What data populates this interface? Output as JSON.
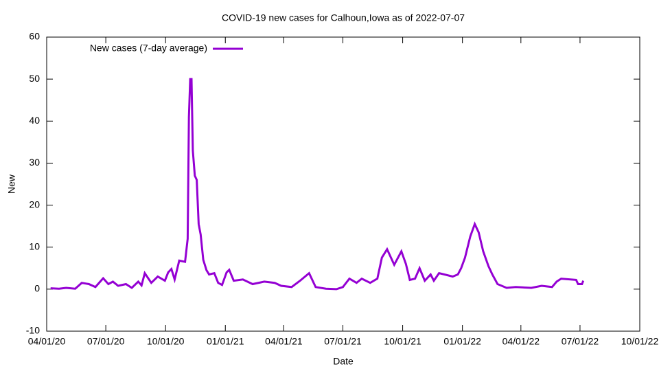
{
  "chart_data": {
    "type": "line",
    "title": "COVID-19 new cases for Calhoun,Iowa as of 2022-07-07",
    "x_label": "Date",
    "y_label": "New",
    "x": [
      "04/07/20",
      "04/20/20",
      "05/01/20",
      "05/15/20",
      "05/25/20",
      "06/05/20",
      "06/15/20",
      "06/27/20",
      "07/05/20",
      "07/12/20",
      "07/20/20",
      "08/01/20",
      "08/10/20",
      "08/20/20",
      "08/25/20",
      "08/30/20",
      "09/09/20",
      "09/19/20",
      "09/30/20",
      "10/05/20",
      "10/10/20",
      "10/15/20",
      "10/22/20",
      "10/31/20",
      "11/04/20",
      "11/06/20",
      "11/08/20",
      "11/10/20",
      "11/12/20",
      "11/15/20",
      "11/18/20",
      "11/21/20",
      "11/24/20",
      "11/28/20",
      "12/03/20",
      "12/07/20",
      "12/15/20",
      "12/21/20",
      "12/27/20",
      "01/03/21",
      "01/07/21",
      "01/14/21",
      "01/28/21",
      "02/12/21",
      "03/02/21",
      "03/18/21",
      "03/28/21",
      "04/13/21",
      "04/26/21",
      "05/10/21",
      "05/20/21",
      "06/05/21",
      "06/21/21",
      "07/01/21",
      "07/11/21",
      "07/22/21",
      "07/30/21",
      "08/12/21",
      "08/23/21",
      "08/30/21",
      "09/07/21",
      "09/18/21",
      "09/29/21",
      "10/06/21",
      "10/12/21",
      "10/20/21",
      "10/27/21",
      "11/04/21",
      "11/13/21",
      "11/18/21",
      "11/26/21",
      "12/17/21",
      "12/25/21",
      "12/30/21",
      "01/05/22",
      "01/13/22",
      "01/20/22",
      "01/26/22",
      "02/02/22",
      "02/10/22",
      "02/16/22",
      "02/24/22",
      "03/10/22",
      "03/24/22",
      "04/17/22",
      "05/03/22",
      "05/19/22",
      "05/26/22",
      "06/02/22",
      "06/25/22",
      "06/28/22",
      "07/04/22",
      "07/06/22"
    ],
    "series": [
      {
        "name": "New cases (7-day average)",
        "color": "#9400d3",
        "values": [
          0.2,
          0.1,
          0.3,
          0.1,
          1.5,
          1.2,
          0.5,
          2.6,
          1.2,
          1.8,
          0.8,
          1.2,
          0.3,
          1.8,
          0.9,
          3.8,
          1.5,
          3.0,
          2.0,
          4.0,
          4.8,
          2.3,
          6.8,
          6.5,
          12,
          41,
          50,
          50,
          33,
          27,
          26,
          15.5,
          13,
          7,
          4.5,
          3.5,
          3.8,
          1.5,
          1.0,
          4.0,
          4.6,
          2.0,
          2.3,
          1.2,
          1.8,
          1.5,
          0.8,
          0.5,
          2.0,
          3.8,
          0.5,
          0.1,
          0,
          0.5,
          2.5,
          1.5,
          2.5,
          1.5,
          2.5,
          7.5,
          9.5,
          5.8,
          9.0,
          6.0,
          2.2,
          2.5,
          5.0,
          2.0,
          3.5,
          2.0,
          3.8,
          3.0,
          3.5,
          5.0,
          7.5,
          12.5,
          15.5,
          13.5,
          9.0,
          5.5,
          3.5,
          1.2,
          0.3,
          0.5,
          0.3,
          0.8,
          0.5,
          1.8,
          2.5,
          2.2,
          1.2,
          1.2,
          2.0
        ]
      }
    ],
    "xlim": [
      "04/01/20",
      "10/01/22"
    ],
    "xticks": [
      "04/01/20",
      "07/01/20",
      "10/01/20",
      "01/01/21",
      "04/01/21",
      "07/01/21",
      "10/01/21",
      "01/01/22",
      "04/01/22",
      "07/01/22",
      "10/01/22"
    ],
    "ylim": [
      -10,
      60
    ],
    "yticks": [
      -10,
      0,
      10,
      20,
      30,
      40,
      50,
      60
    ],
    "grid": false,
    "legend": "top-left"
  }
}
